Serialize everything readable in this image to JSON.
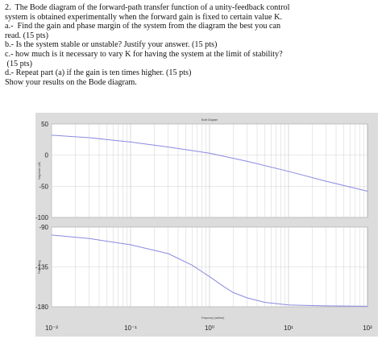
{
  "question": {
    "lines": [
      "2.  The Bode diagram of the forward-path transfer function of a unity-feedback control",
      "system is obtained experimentally when the forward gain is fixed to certain value K.",
      "a.-  Find the gain and phase margin of the system from the diagram the best you can",
      "read. (15 pts)",
      "b.- Is the system stable or unstable? Justify your answer. (15 pts)",
      "c.- how much is it necessary to vary K for having the system at the limit of stability?",
      " (15 pts)",
      "d.- Repeat part (a) if the gain is ten times higher. (15 pts)",
      "Show your results on the Bode diagram."
    ]
  },
  "colors": {
    "curve": "#8a8ae0",
    "frame_bg": "#dcdcdc",
    "plot_bg": "#ffffff",
    "grid": "#d0d0d0"
  },
  "chart_data": {
    "type": "line",
    "title": "Bode Diagram",
    "xlabel": "Frequency (rad/sec)",
    "xscale": "log",
    "xlim": [
      0.01,
      100
    ],
    "x_tick_labels": [
      "10⁻²",
      "10⁻¹",
      "10⁰",
      "10¹",
      "10²"
    ],
    "grid": true,
    "magnitude": {
      "ylabel": "Magnitude (dB)",
      "ylim": [
        -100,
        50
      ],
      "y_tick_labels": [
        "50",
        "0",
        "-50",
        "-100"
      ],
      "x": [
        0.01,
        0.03,
        0.1,
        0.3,
        1,
        3,
        10,
        30,
        100
      ],
      "y": [
        32,
        28,
        21,
        13,
        3,
        -10,
        -26,
        -42,
        -58
      ]
    },
    "phase": {
      "ylabel": "Phase (deg)",
      "ylim": [
        -180,
        -90
      ],
      "y_tick_labels": [
        "-90",
        "-135",
        "-180"
      ],
      "x": [
        0.01,
        0.03,
        0.1,
        0.3,
        0.6,
        1,
        1.5,
        2,
        3,
        5,
        10,
        30,
        100
      ],
      "y": [
        -99,
        -103,
        -110,
        -120,
        -133,
        -146,
        -157,
        -164,
        -170,
        -175,
        -178,
        -179,
        -179.5
      ]
    }
  }
}
